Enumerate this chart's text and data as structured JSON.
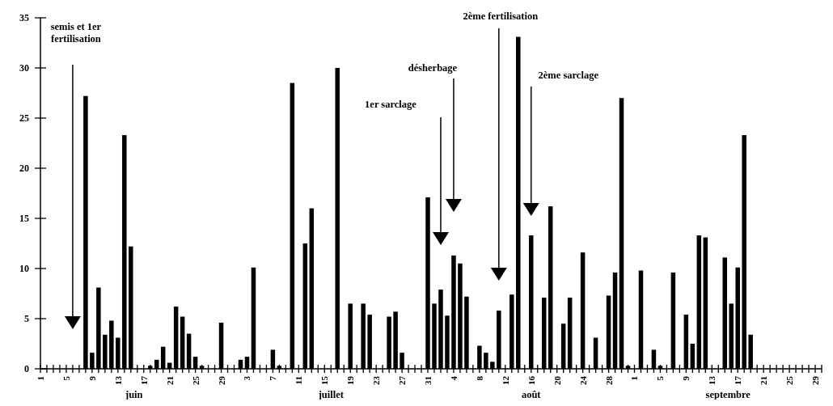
{
  "chart_data": {
    "type": "bar",
    "x": [
      "--06-08",
      "--06-09",
      "--06-10",
      "--06-11",
      "--06-12",
      "--06-13",
      "--06-14",
      "--06-15",
      "--06-18",
      "--06-19",
      "--06-20",
      "--06-21",
      "--06-22",
      "--06-23",
      "--06-24",
      "--06-25",
      "--06-26",
      "--06-29",
      "--07-02",
      "--07-03",
      "--07-04",
      "--07-07",
      "--07-08",
      "--07-10",
      "--07-12",
      "--07-13",
      "--07-17",
      "--07-19",
      "--07-21",
      "--07-22",
      "--07-25",
      "--07-26",
      "--07-27",
      "--07-31",
      "--08-01",
      "--08-02",
      "--08-03",
      "--08-04",
      "--08-05",
      "--08-06",
      "--08-08",
      "--08-09",
      "--08-10",
      "--08-11",
      "--08-13",
      "--08-14",
      "--08-16",
      "--08-18",
      "--08-19",
      "--08-21",
      "--08-22",
      "--08-24",
      "--08-26",
      "--08-28",
      "--08-29",
      "--08-30",
      "--08-31",
      "--09-02",
      "--09-04",
      "--09-05",
      "--09-07",
      "--09-09",
      "--09-10",
      "--09-11",
      "--09-12",
      "--09-15",
      "--09-16",
      "--09-17",
      "--09-18",
      "--09-19"
    ],
    "values": [
      27.2,
      1.6,
      8.1,
      3.4,
      4.8,
      3.1,
      23.3,
      12.2,
      0.3,
      0.9,
      2.2,
      0.6,
      6.2,
      5.2,
      3.5,
      1.2,
      0.3,
      4.6,
      0.9,
      1.2,
      10.1,
      1.9,
      0.3,
      28.5,
      12.5,
      16.0,
      30.0,
      6.5,
      6.5,
      5.4,
      5.2,
      5.7,
      1.6,
      17.1,
      6.5,
      7.9,
      5.3,
      11.3,
      10.5,
      7.2,
      2.3,
      1.6,
      0.7,
      5.8,
      7.4,
      33.1,
      13.3,
      7.1,
      16.2,
      4.5,
      7.1,
      11.6,
      3.1,
      7.3,
      9.6,
      27.0,
      0.3,
      9.8,
      1.9,
      0.3,
      9.6,
      5.4,
      2.5,
      13.3,
      13.1,
      11.1,
      6.5,
      10.1,
      23.3,
      3.4
    ],
    "color": "#000000",
    "ylim": [
      0,
      35
    ],
    "yticks": [
      0,
      5,
      10,
      15,
      20,
      25,
      30,
      35
    ],
    "xlim": [
      "--06-01",
      "--09-30"
    ],
    "xticks": [
      {
        "value": "--06-01",
        "label": "1"
      },
      {
        "value": "--06-02",
        "label": null
      },
      {
        "value": "--06-03",
        "label": null
      },
      {
        "value": "--06-04",
        "label": null
      },
      {
        "value": "--06-05",
        "label": "5"
      },
      {
        "value": "--06-06",
        "label": null
      },
      {
        "value": "--06-07",
        "label": null
      },
      {
        "value": "--06-08",
        "label": null
      },
      {
        "value": "--06-09",
        "label": "9"
      },
      {
        "value": "--06-10",
        "label": null
      },
      {
        "value": "--06-11",
        "label": null
      },
      {
        "value": "--06-12",
        "label": null
      },
      {
        "value": "--06-13",
        "label": "13"
      },
      {
        "value": "--06-14",
        "label": null
      },
      {
        "value": "--06-15",
        "label": null
      },
      {
        "value": "--06-16",
        "label": null
      },
      {
        "value": "--06-17",
        "label": "17"
      },
      {
        "value": "--06-18",
        "label": null
      },
      {
        "value": "--06-19",
        "label": null
      },
      {
        "value": "--06-20",
        "label": null
      },
      {
        "value": "--06-21",
        "label": "21"
      },
      {
        "value": "--06-22",
        "label": null
      },
      {
        "value": "--06-23",
        "label": null
      },
      {
        "value": "--06-24",
        "label": null
      },
      {
        "value": "--06-25",
        "label": "25"
      },
      {
        "value": "--06-26",
        "label": null
      },
      {
        "value": "--06-27",
        "label": null
      },
      {
        "value": "--06-28",
        "label": null
      },
      {
        "value": "--06-29",
        "label": "29"
      },
      {
        "value": "--06-30",
        "label": null
      },
      {
        "value": "--07-01",
        "label": null
      },
      {
        "value": "--07-02",
        "label": null
      },
      {
        "value": "--07-03",
        "label": "3"
      },
      {
        "value": "--07-04",
        "label": null
      },
      {
        "value": "--07-05",
        "label": null
      },
      {
        "value": "--07-06",
        "label": null
      },
      {
        "value": "--07-07",
        "label": "7"
      },
      {
        "value": "--07-08",
        "label": null
      },
      {
        "value": "--07-09",
        "label": null
      },
      {
        "value": "--07-10",
        "label": null
      },
      {
        "value": "--07-11",
        "label": "11"
      },
      {
        "value": "--07-12",
        "label": null
      },
      {
        "value": "--07-13",
        "label": null
      },
      {
        "value": "--07-14",
        "label": null
      },
      {
        "value": "--07-15",
        "label": "15"
      },
      {
        "value": "--07-16",
        "label": null
      },
      {
        "value": "--07-17",
        "label": null
      },
      {
        "value": "--07-18",
        "label": null
      },
      {
        "value": "--07-19",
        "label": "19"
      },
      {
        "value": "--07-20",
        "label": null
      },
      {
        "value": "--07-21",
        "label": null
      },
      {
        "value": "--07-22",
        "label": null
      },
      {
        "value": "--07-23",
        "label": "23"
      },
      {
        "value": "--07-24",
        "label": null
      },
      {
        "value": "--07-25",
        "label": null
      },
      {
        "value": "--07-26",
        "label": null
      },
      {
        "value": "--07-27",
        "label": "27"
      },
      {
        "value": "--07-28",
        "label": null
      },
      {
        "value": "--07-29",
        "label": null
      },
      {
        "value": "--07-30",
        "label": null
      },
      {
        "value": "--07-31",
        "label": "31"
      },
      {
        "value": "--08-01",
        "label": null
      },
      {
        "value": "--08-02",
        "label": null
      },
      {
        "value": "--08-03",
        "label": null
      },
      {
        "value": "--08-04",
        "label": "4"
      },
      {
        "value": "--08-05",
        "label": null
      },
      {
        "value": "--08-06",
        "label": null
      },
      {
        "value": "--08-07",
        "label": null
      },
      {
        "value": "--08-08",
        "label": "8"
      },
      {
        "value": "--08-09",
        "label": null
      },
      {
        "value": "--08-10",
        "label": null
      },
      {
        "value": "--08-11",
        "label": null
      },
      {
        "value": "--08-12",
        "label": "12"
      },
      {
        "value": "--08-13",
        "label": null
      },
      {
        "value": "--08-14",
        "label": null
      },
      {
        "value": "--08-15",
        "label": null
      },
      {
        "value": "--08-16",
        "label": "16"
      },
      {
        "value": "--08-17",
        "label": null
      },
      {
        "value": "--08-18",
        "label": null
      },
      {
        "value": "--08-19",
        "label": null
      },
      {
        "value": "--08-20",
        "label": "20"
      },
      {
        "value": "--08-21",
        "label": null
      },
      {
        "value": "--08-22",
        "label": null
      },
      {
        "value": "--08-23",
        "label": null
      },
      {
        "value": "--08-24",
        "label": "24"
      },
      {
        "value": "--08-25",
        "label": null
      },
      {
        "value": "--08-26",
        "label": null
      },
      {
        "value": "--08-27",
        "label": null
      },
      {
        "value": "--08-28",
        "label": "28"
      },
      {
        "value": "--08-29",
        "label": null
      },
      {
        "value": "--08-30",
        "label": null
      },
      {
        "value": "--08-31",
        "label": null
      },
      {
        "value": "--09-01",
        "label": "1"
      },
      {
        "value": "--09-02",
        "label": null
      },
      {
        "value": "--09-03",
        "label": null
      },
      {
        "value": "--09-04",
        "label": null
      },
      {
        "value": "--09-05",
        "label": "5"
      },
      {
        "value": "--09-06",
        "label": null
      },
      {
        "value": "--09-07",
        "label": null
      },
      {
        "value": "--09-08",
        "label": null
      },
      {
        "value": "--09-09",
        "label": "9"
      },
      {
        "value": "--09-10",
        "label": null
      },
      {
        "value": "--09-11",
        "label": null
      },
      {
        "value": "--09-12",
        "label": null
      },
      {
        "value": "--09-13",
        "label": "13"
      },
      {
        "value": "--09-14",
        "label": null
      },
      {
        "value": "--09-15",
        "label": null
      },
      {
        "value": "--09-16",
        "label": null
      },
      {
        "value": "--09-17",
        "label": "17"
      },
      {
        "value": "--09-18",
        "label": null
      },
      {
        "value": "--09-19",
        "label": null
      },
      {
        "value": "--09-20",
        "label": null
      },
      {
        "value": "--09-21",
        "label": "21"
      },
      {
        "value": "--09-22",
        "label": null
      },
      {
        "value": "--09-23",
        "label": null
      },
      {
        "value": "--09-24",
        "label": null
      },
      {
        "value": "--09-25",
        "label": "25"
      },
      {
        "value": "--09-26",
        "label": null
      },
      {
        "value": "--09-27",
        "label": null
      },
      {
        "value": "--09-28",
        "label": null
      },
      {
        "value": "--09-29",
        "label": "29"
      },
      {
        "value": "--09-30",
        "label": null
      }
    ],
    "annotations": [
      "semis et 1er\nfertilisation",
      "1er sarclage",
      "désherbage",
      "2ème fertilisation",
      "2ème sarclage",
      "juin",
      "juillet",
      "août",
      "septembre"
    ]
  }
}
